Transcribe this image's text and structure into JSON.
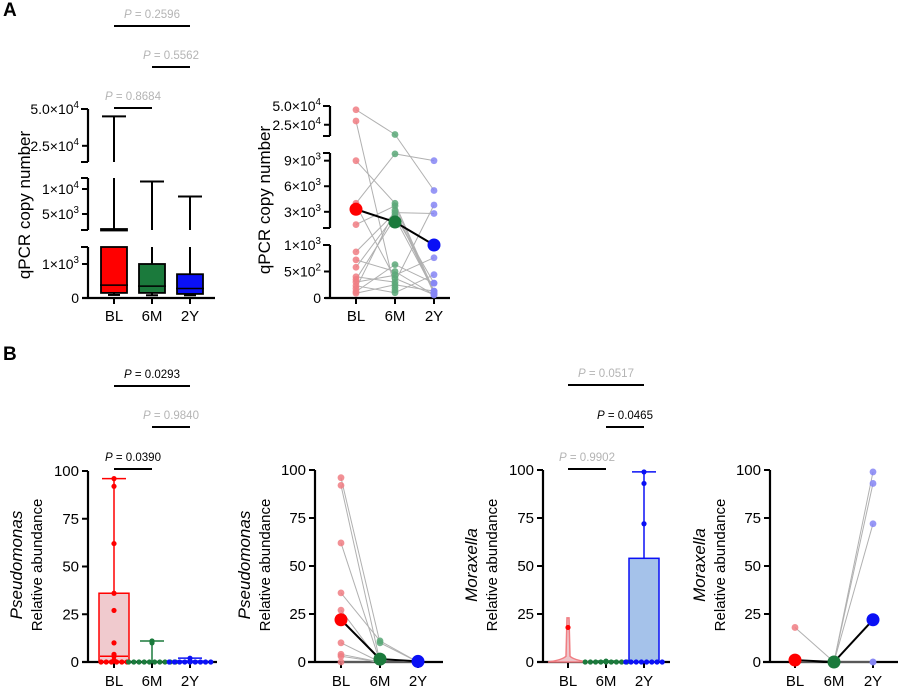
{
  "panels": [
    {
      "letter": "A"
    },
    {
      "letter": "B"
    }
  ],
  "colors": {
    "red": "#ff0000",
    "green": "#1b7a3c",
    "blue": "#0a10f5",
    "red_light": "#f07d82",
    "green_light": "#5aa878",
    "blue_light": "#8585f5",
    "red_box": "#eec4c9",
    "blue_box": "#9bbbe8",
    "gray_line": "#b0b0b0",
    "gray_text": "#b4b4b4"
  },
  "chart_data": [
    {
      "type": "box",
      "panel": "A",
      "ylabel": "qPCR copy number",
      "ylabel_italic": "",
      "categories": [
        "BL",
        "6M",
        "2Y"
      ],
      "y_segments": [
        [
          0,
          1500
        ],
        [
          1800,
          12200
        ],
        [
          14000,
          50000
        ]
      ],
      "y_ticks": [
        {
          "value": 0,
          "label": "0",
          "exp": ""
        },
        {
          "value": 1000,
          "label": "1×10",
          "exp": "3"
        },
        {
          "value": 5000,
          "label": "5×10",
          "exp": "3"
        },
        {
          "value": 10000,
          "label": "1×10",
          "exp": "4"
        },
        {
          "value": 25000,
          "label": "2.5×10",
          "exp": "4"
        },
        {
          "value": 50000,
          "label": "5.0×10",
          "exp": "4"
        }
      ],
      "box_style": "solid",
      "boxes": [
        {
          "min": 90,
          "q1": 150,
          "median": 380,
          "q3": 2000,
          "max": 45000,
          "color": "red"
        },
        {
          "min": 80,
          "q1": 150,
          "median": 350,
          "q3": 1000,
          "max": 11500,
          "color": "green"
        },
        {
          "min": 80,
          "q1": 120,
          "median": 280,
          "q3": 700,
          "max": 8500,
          "color": "blue"
        }
      ],
      "comparisons": [
        {
          "from": "BL",
          "to": "6M",
          "label": "P = 0.8684",
          "significant": false
        },
        {
          "from": "BL",
          "to": "2Y",
          "label": "P = 0.2596",
          "significant": false
        },
        {
          "from": "6M",
          "to": "2Y",
          "label": "P = 0.5562",
          "significant": false
        }
      ]
    },
    {
      "type": "paired-scatter",
      "panel": "A",
      "ylabel": "qPCR copy number",
      "ylabel_italic": "",
      "categories": [
        "BL",
        "6M",
        "2Y"
      ],
      "y_segments": [
        [
          0,
          1000
        ],
        [
          1100,
          9900
        ],
        [
          10000,
          50000
        ]
      ],
      "y_ticks": [
        {
          "value": 0,
          "label": "0",
          "exp": ""
        },
        {
          "value": 500,
          "label": "5×10",
          "exp": "2"
        },
        {
          "value": 1000,
          "label": "1×10",
          "exp": "3"
        },
        {
          "value": 3000,
          "label": "3×10",
          "exp": "3"
        },
        {
          "value": 6000,
          "label": "6×10",
          "exp": "3"
        },
        {
          "value": 9000,
          "label": "9×10",
          "exp": "3"
        },
        {
          "value": 25000,
          "label": "2.5×10",
          "exp": "4"
        },
        {
          "value": 50000,
          "label": "5.0×10",
          "exp": "4"
        }
      ],
      "subjects": [
        [
          45000,
          12000,
          5500
        ],
        [
          30000,
          150,
          null
        ],
        [
          9000,
          4000,
          130
        ],
        [
          4000,
          9800,
          9000
        ],
        [
          1500,
          3700,
          90
        ],
        [
          870,
          2900,
          2800
        ],
        [
          720,
          500,
          60
        ],
        [
          580,
          2600,
          280
        ],
        [
          400,
          300,
          3800
        ],
        [
          350,
          2300,
          130
        ],
        [
          300,
          430,
          760
        ],
        [
          230,
          100,
          440
        ],
        [
          180,
          3200,
          90
        ],
        [
          120,
          630,
          280
        ],
        [
          90,
          250,
          130
        ],
        [
          3800,
          370,
          60
        ],
        [
          null,
          200,
          null
        ]
      ],
      "means": [
        3300,
        1800,
        1000
      ],
      "colors": [
        "red",
        "green",
        "blue"
      ]
    },
    {
      "type": "box",
      "panel": "B",
      "ylabel": "Relative abundance",
      "ylabel_italic": "Pseudomonas",
      "categories": [
        "BL",
        "6M",
        "2Y"
      ],
      "y_segments": [
        [
          0,
          100
        ]
      ],
      "y_ticks": [
        {
          "value": 0,
          "label": "0",
          "exp": ""
        },
        {
          "value": 25,
          "label": "25",
          "exp": ""
        },
        {
          "value": 50,
          "label": "50",
          "exp": ""
        },
        {
          "value": 75,
          "label": "75",
          "exp": ""
        },
        {
          "value": 100,
          "label": "100",
          "exp": ""
        }
      ],
      "box_style": "light",
      "boxes": [
        {
          "min": 0,
          "q1": 0.3,
          "median": 3,
          "q3": 36,
          "max": 96,
          "color": "red",
          "points": [
            96,
            92,
            62,
            36,
            27,
            10,
            4,
            3,
            1,
            0.5,
            0,
            0,
            0,
            0,
            0,
            0
          ]
        },
        {
          "min": 0,
          "q1": 0,
          "median": 0,
          "q3": 0,
          "max": 11,
          "color": "green",
          "points": [
            11,
            10,
            0,
            0,
            0,
            0,
            0,
            0,
            0,
            0,
            0,
            0
          ]
        },
        {
          "min": 0,
          "q1": 0,
          "median": 0,
          "q3": 0.5,
          "max": 2,
          "color": "blue",
          "points": [
            2,
            0.5,
            0,
            0,
            0,
            0,
            0,
            0,
            0,
            0,
            0
          ]
        }
      ],
      "comparisons": [
        {
          "from": "BL",
          "to": "6M",
          "label": "P = 0.0390",
          "significant": true
        },
        {
          "from": "BL",
          "to": "2Y",
          "label": "P = 0.0293",
          "significant": true
        },
        {
          "from": "6M",
          "to": "2Y",
          "label": "P = 0.9840",
          "significant": false
        }
      ]
    },
    {
      "type": "paired-scatter",
      "panel": "B",
      "ylabel": "Relative abundance",
      "ylabel_italic": "Pseudomonas",
      "categories": [
        "BL",
        "6M",
        "2Y"
      ],
      "y_segments": [
        [
          0,
          100
        ]
      ],
      "y_ticks": [
        {
          "value": 0,
          "label": "0",
          "exp": ""
        },
        {
          "value": 25,
          "label": "25",
          "exp": ""
        },
        {
          "value": 50,
          "label": "50",
          "exp": ""
        },
        {
          "value": 75,
          "label": "75",
          "exp": ""
        },
        {
          "value": 100,
          "label": "100",
          "exp": ""
        }
      ],
      "subjects": [
        [
          96,
          10,
          0
        ],
        [
          92,
          0,
          0
        ],
        [
          62,
          0,
          0
        ],
        [
          36,
          11,
          0
        ],
        [
          27,
          0,
          0
        ],
        [
          10,
          0,
          0
        ],
        [
          4,
          0,
          0
        ],
        [
          3,
          0,
          0
        ],
        [
          0,
          0,
          0
        ]
      ],
      "means": [
        22,
        1.5,
        0.3
      ],
      "colors": [
        "red",
        "green",
        "blue"
      ]
    },
    {
      "type": "box",
      "panel": "B",
      "ylabel": "Relative abundance",
      "ylabel_italic": "Moraxella",
      "categories": [
        "BL",
        "6M",
        "2Y"
      ],
      "y_segments": [
        [
          0,
          100
        ]
      ],
      "y_ticks": [
        {
          "value": 0,
          "label": "0",
          "exp": ""
        },
        {
          "value": 25,
          "label": "25",
          "exp": ""
        },
        {
          "value": 50,
          "label": "50",
          "exp": ""
        },
        {
          "value": 75,
          "label": "75",
          "exp": ""
        },
        {
          "value": 100,
          "label": "100",
          "exp": ""
        }
      ],
      "box_style": "light",
      "boxes": [
        {
          "violin": true,
          "min": 0,
          "max": 23,
          "color": "red",
          "points": [
            18
          ]
        },
        {
          "min": 0,
          "q1": 0,
          "median": 0,
          "q3": 0,
          "max": 0.5,
          "color": "green",
          "points": [
            0.5,
            0,
            0,
            0,
            0,
            0,
            0,
            0,
            0,
            0
          ]
        },
        {
          "min": 0,
          "q1": 0,
          "median": 0,
          "q3": 54,
          "max": 99,
          "color": "blue",
          "points": [
            99,
            93,
            72,
            0,
            0,
            0,
            0,
            0,
            0,
            0,
            0
          ]
        }
      ],
      "comparisons": [
        {
          "from": "BL",
          "to": "6M",
          "label": "P = 0.9902",
          "significant": false
        },
        {
          "from": "BL",
          "to": "2Y",
          "label": "P = 0.0517",
          "significant": false
        },
        {
          "from": "6M",
          "to": "2Y",
          "label": "P = 0.0465",
          "significant": true
        }
      ]
    },
    {
      "type": "paired-scatter",
      "panel": "B",
      "ylabel": "Relative abundance",
      "ylabel_italic": "Moraxella",
      "categories": [
        "BL",
        "6M",
        "2Y"
      ],
      "y_segments": [
        [
          0,
          100
        ]
      ],
      "y_ticks": [
        {
          "value": 0,
          "label": "0",
          "exp": ""
        },
        {
          "value": 25,
          "label": "25",
          "exp": ""
        },
        {
          "value": 50,
          "label": "50",
          "exp": ""
        },
        {
          "value": 75,
          "label": "75",
          "exp": ""
        },
        {
          "value": 100,
          "label": "100",
          "exp": ""
        }
      ],
      "subjects": [
        [
          18,
          0,
          0
        ],
        [
          0,
          0,
          99
        ],
        [
          0,
          0,
          93
        ],
        [
          0,
          0,
          72
        ],
        [
          0,
          0,
          0
        ]
      ],
      "means": [
        1,
        0,
        22
      ],
      "colors": [
        "red",
        "green",
        "blue"
      ]
    }
  ]
}
